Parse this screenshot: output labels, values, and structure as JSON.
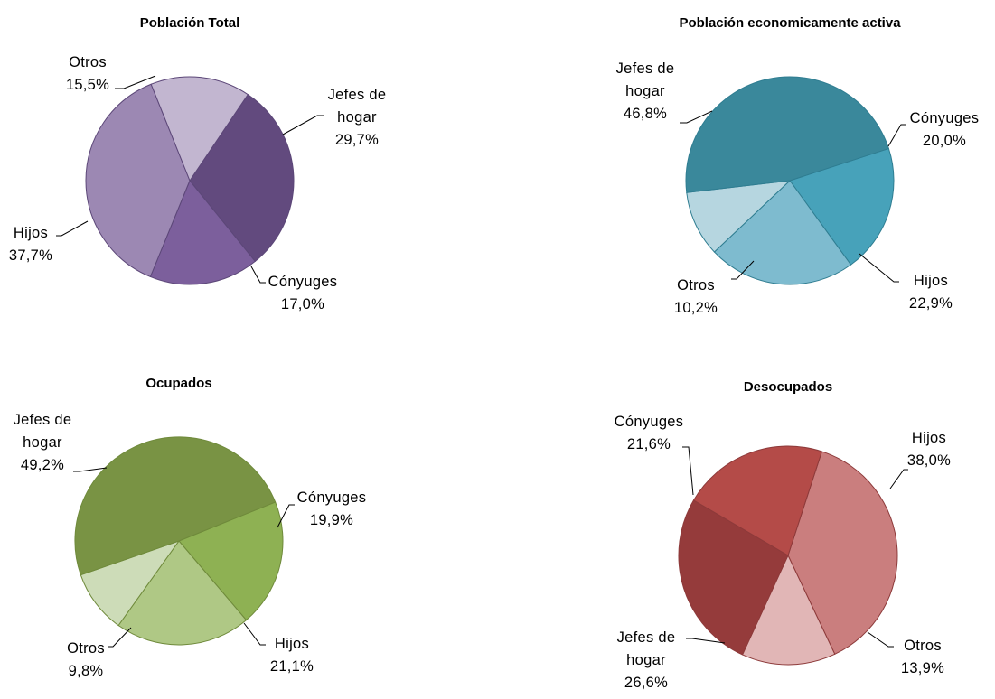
{
  "chart_data": [
    {
      "type": "pie",
      "title": "Población  Total",
      "slices": [
        {
          "label_lines": [
            "Jefes de",
            "hogar"
          ],
          "value": 29.7,
          "value_text": "29,7%",
          "color": "#624a7e"
        },
        {
          "label_lines": [
            "Cónyuges"
          ],
          "value": 17.0,
          "value_text": "17,0%",
          "color": "#7c5f9c"
        },
        {
          "label_lines": [
            "Hijos"
          ],
          "value": 37.7,
          "value_text": "37,7%",
          "color": "#9c88b3"
        },
        {
          "label_lines": [
            "Otros"
          ],
          "value": 15.5,
          "value_text": "15,5%",
          "color": "#c2b6d0"
        }
      ]
    },
    {
      "type": "pie",
      "title": "Población  economicamente  activa",
      "slices": [
        {
          "label_lines": [
            "Cónyuges"
          ],
          "value": 20.0,
          "value_text": "20,0%",
          "color": "#47a2ba"
        },
        {
          "label_lines": [
            "Hijos"
          ],
          "value": 22.9,
          "value_text": "22,9%",
          "color": "#7ebbcf"
        },
        {
          "label_lines": [
            "Otros"
          ],
          "value": 10.2,
          "value_text": "10,2%",
          "color": "#b6d6e0"
        },
        {
          "label_lines": [
            "Jefes de",
            "hogar"
          ],
          "value": 46.8,
          "value_text": "46,8%",
          "color": "#3a889b"
        }
      ]
    },
    {
      "type": "pie",
      "title": "Ocupados",
      "slices": [
        {
          "label_lines": [
            "Cónyuges"
          ],
          "value": 19.9,
          "value_text": "19,9%",
          "color": "#8eb153"
        },
        {
          "label_lines": [
            "Hijos"
          ],
          "value": 21.1,
          "value_text": "21,1%",
          "color": "#afc885"
        },
        {
          "label_lines": [
            "Otros"
          ],
          "value": 9.8,
          "value_text": "9,8%",
          "color": "#cddcb8"
        },
        {
          "label_lines": [
            "Jefes de",
            "hogar"
          ],
          "value": 49.2,
          "value_text": "49,2%",
          "color": "#799344"
        }
      ]
    },
    {
      "type": "pie",
      "title": "Desocupados",
      "slices": [
        {
          "label_lines": [
            "Hijos"
          ],
          "value": 38.0,
          "value_text": "38,0%",
          "color": "#ca7e7e"
        },
        {
          "label_lines": [
            "Otros"
          ],
          "value": 13.9,
          "value_text": "13,9%",
          "color": "#e1b6b6"
        },
        {
          "label_lines": [
            "Jefes de",
            "hogar"
          ],
          "value": 26.6,
          "value_text": "26,6%",
          "color": "#953b3b"
        },
        {
          "label_lines": [
            "Cónyuges"
          ],
          "value": 21.6,
          "value_text": "21,6%",
          "color": "#b44b48"
        }
      ]
    }
  ]
}
